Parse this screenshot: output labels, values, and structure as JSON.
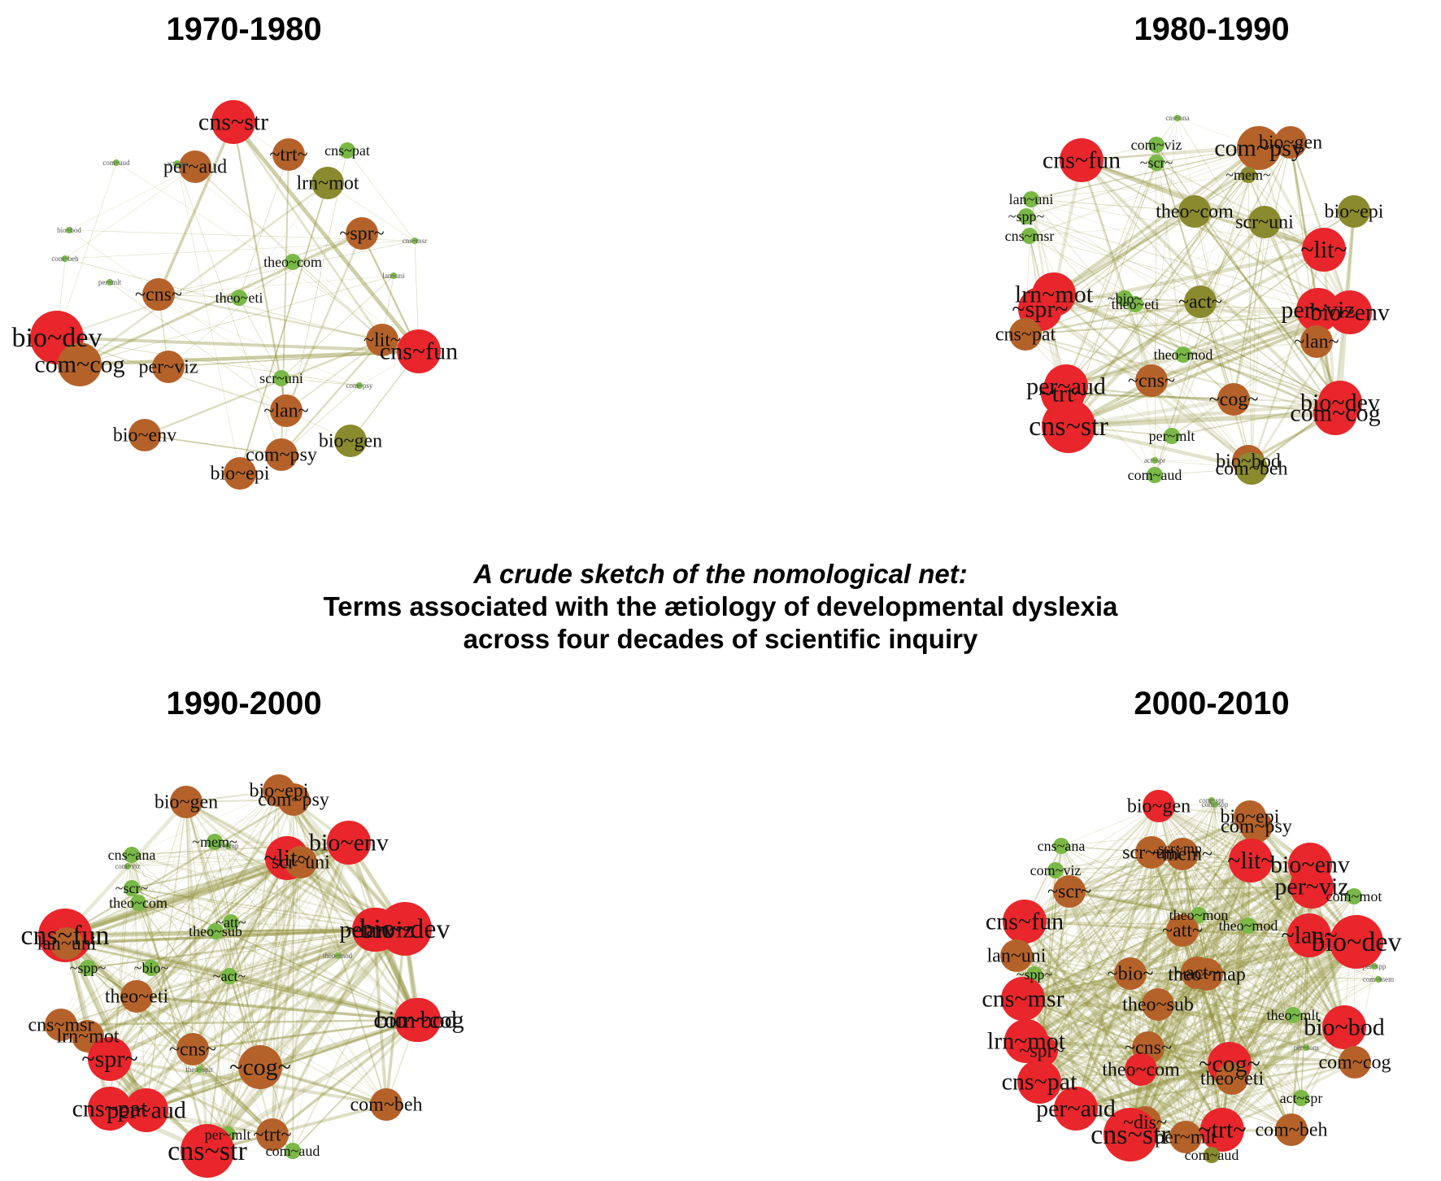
{
  "caption": {
    "line1": "A crude sketch of the nomological net:",
    "line2": "Terms associated with the ætiology of developmental dyslexia",
    "line3": "across four decades of scientific inquiry"
  },
  "colors": {
    "high": "#e8262b",
    "mid": "#b5622a",
    "low": "#8a8a2e",
    "small": "#7ab847",
    "edge": "#8a8a2e"
  },
  "panels": [
    {
      "title": "1970-1980",
      "nodes": [
        {
          "label": "cns~str",
          "size": 3,
          "color": "high"
        },
        {
          "label": "per~aud",
          "size": 2,
          "color": "mid"
        },
        {
          "label": "~trt~",
          "size": 2,
          "color": "mid"
        },
        {
          "label": "cns~pat",
          "size": 1,
          "color": "small"
        },
        {
          "label": "lrn~mot",
          "size": 2,
          "color": "low"
        },
        {
          "label": "~spr~",
          "size": 2,
          "color": "mid"
        },
        {
          "label": "theo~com",
          "size": 1,
          "color": "small"
        },
        {
          "label": "~cns~",
          "size": 2,
          "color": "mid"
        },
        {
          "label": "theo~eti",
          "size": 1,
          "color": "small"
        },
        {
          "label": "bio~dev",
          "size": 4,
          "color": "high"
        },
        {
          "label": "com~cog",
          "size": 3,
          "color": "mid"
        },
        {
          "label": "per~viz",
          "size": 2,
          "color": "mid"
        },
        {
          "label": "~lit~",
          "size": 2,
          "color": "mid"
        },
        {
          "label": "cns~fun",
          "size": 3,
          "color": "high"
        },
        {
          "label": "scr~uni",
          "size": 1,
          "color": "small"
        },
        {
          "label": "~lan~",
          "size": 2,
          "color": "mid"
        },
        {
          "label": "bio~env",
          "size": 2,
          "color": "mid"
        },
        {
          "label": "bio~gen",
          "size": 2,
          "color": "low"
        },
        {
          "label": "com~psy",
          "size": 2,
          "color": "mid"
        },
        {
          "label": "bio~epi",
          "size": 2,
          "color": "mid"
        },
        {
          "label": "com~aud",
          "size": 0,
          "color": "small"
        },
        {
          "label": "act~spr",
          "size": 0,
          "color": "small"
        },
        {
          "label": "bio~bod",
          "size": 0,
          "color": "small"
        },
        {
          "label": "per~mlt",
          "size": 0,
          "color": "small"
        },
        {
          "label": "com~beh",
          "size": 0,
          "color": "small"
        },
        {
          "label": "cns~msr",
          "size": 0,
          "color": "small"
        },
        {
          "label": "lan~uni",
          "size": 0,
          "color": "small"
        },
        {
          "label": "com~psy",
          "size": 0,
          "color": "small"
        }
      ]
    },
    {
      "title": "1980-1990",
      "nodes": [
        {
          "label": "cns~fun",
          "size": 3,
          "color": "high"
        },
        {
          "label": "cns~ana",
          "size": 0,
          "color": "small"
        },
        {
          "label": "com~viz",
          "size": 1,
          "color": "small"
        },
        {
          "label": "~scr~",
          "size": 1,
          "color": "small"
        },
        {
          "label": "bio~gen",
          "size": 2,
          "color": "mid"
        },
        {
          "label": "com~psy",
          "size": 3,
          "color": "mid"
        },
        {
          "label": "~mem~",
          "size": 1,
          "color": "low"
        },
        {
          "label": "lan~uni",
          "size": 1,
          "color": "small"
        },
        {
          "label": "~spp~",
          "size": 1,
          "color": "small"
        },
        {
          "label": "theo~com",
          "size": 2,
          "color": "low"
        },
        {
          "label": "bio~epi",
          "size": 2,
          "color": "low"
        },
        {
          "label": "scr~uni",
          "size": 2,
          "color": "low"
        },
        {
          "label": "cns~msr",
          "size": 1,
          "color": "small"
        },
        {
          "label": "~lit~",
          "size": 3,
          "color": "high"
        },
        {
          "label": "lrn~mot",
          "size": 3,
          "color": "high"
        },
        {
          "label": "~spr~",
          "size": 3,
          "color": "high"
        },
        {
          "label": "~bio~",
          "size": 1,
          "color": "small"
        },
        {
          "label": "theo~eti",
          "size": 1,
          "color": "small"
        },
        {
          "label": "~act~",
          "size": 2,
          "color": "low"
        },
        {
          "label": "per~viz",
          "size": 3,
          "color": "high"
        },
        {
          "label": "bio~env",
          "size": 3,
          "color": "high"
        },
        {
          "label": "cns~pat",
          "size": 2,
          "color": "mid"
        },
        {
          "label": "~lan~",
          "size": 2,
          "color": "mid"
        },
        {
          "label": "theo~mod",
          "size": 1,
          "color": "small"
        },
        {
          "label": "per~aud",
          "size": 3,
          "color": "high"
        },
        {
          "label": "~cns~",
          "size": 2,
          "color": "mid"
        },
        {
          "label": "~cog~",
          "size": 2,
          "color": "mid"
        },
        {
          "label": "bio~dev",
          "size": 3,
          "color": "high"
        },
        {
          "label": "com~cog",
          "size": 3,
          "color": "high"
        },
        {
          "label": "~trt~",
          "size": 3,
          "color": "high"
        },
        {
          "label": "cns~str",
          "size": 4,
          "color": "high"
        },
        {
          "label": "per~mlt",
          "size": 1,
          "color": "small"
        },
        {
          "label": "bio~bod",
          "size": 2,
          "color": "mid"
        },
        {
          "label": "act~spr",
          "size": 0,
          "color": "small"
        },
        {
          "label": "com~beh",
          "size": 2,
          "color": "low"
        },
        {
          "label": "com~aud",
          "size": 1,
          "color": "small"
        }
      ]
    },
    {
      "title": "1990-2000",
      "nodes": [
        {
          "label": "bio~gen",
          "size": 2,
          "color": "mid"
        },
        {
          "label": "bio~epi",
          "size": 2,
          "color": "mid"
        },
        {
          "label": "com~psy",
          "size": 2,
          "color": "mid"
        },
        {
          "label": "bio~env",
          "size": 3,
          "color": "high"
        },
        {
          "label": "~mem~",
          "size": 1,
          "color": "small"
        },
        {
          "label": "scr~mp",
          "size": 0,
          "color": "small"
        },
        {
          "label": "~lit~",
          "size": 3,
          "color": "high"
        },
        {
          "label": "scr~uni",
          "size": 2,
          "color": "mid"
        },
        {
          "label": "cns~ana",
          "size": 1,
          "color": "small"
        },
        {
          "label": "com~viz",
          "size": 0,
          "color": "small"
        },
        {
          "label": "~scr~",
          "size": 1,
          "color": "small"
        },
        {
          "label": "theo~com",
          "size": 1,
          "color": "small"
        },
        {
          "label": "~att~",
          "size": 1,
          "color": "small"
        },
        {
          "label": "theo~sub",
          "size": 1,
          "color": "small"
        },
        {
          "label": "~lan~",
          "size": 3,
          "color": "high"
        },
        {
          "label": "per~viz",
          "size": 3,
          "color": "high"
        },
        {
          "label": "bio~dev",
          "size": 4,
          "color": "high"
        },
        {
          "label": "cns~fun",
          "size": 4,
          "color": "high"
        },
        {
          "label": "lan~uni",
          "size": 2,
          "color": "mid"
        },
        {
          "label": "~spp~",
          "size": 1,
          "color": "small"
        },
        {
          "label": "~bio~",
          "size": 1,
          "color": "small"
        },
        {
          "label": "~act~",
          "size": 1,
          "color": "small"
        },
        {
          "label": "theo~mod",
          "size": 0,
          "color": "small"
        },
        {
          "label": "theo~eti",
          "size": 2,
          "color": "mid"
        },
        {
          "label": "com~cog",
          "size": 3,
          "color": "high"
        },
        {
          "label": "bio~bod",
          "size": 3,
          "color": "high"
        },
        {
          "label": "cns~msr",
          "size": 2,
          "color": "mid"
        },
        {
          "label": "lrn~mot",
          "size": 2,
          "color": "mid"
        },
        {
          "label": "~cns~",
          "size": 2,
          "color": "mid"
        },
        {
          "label": "~spr~",
          "size": 3,
          "color": "high"
        },
        {
          "label": "~cog~",
          "size": 3,
          "color": "mid"
        },
        {
          "label": "theo~spit",
          "size": 0,
          "color": "small"
        },
        {
          "label": "com~beh",
          "size": 2,
          "color": "mid"
        },
        {
          "label": "cns~pat",
          "size": 3,
          "color": "high"
        },
        {
          "label": "per~aud",
          "size": 3,
          "color": "high"
        },
        {
          "label": "per~mlt",
          "size": 1,
          "color": "small"
        },
        {
          "label": "~trt~",
          "size": 2,
          "color": "mid"
        },
        {
          "label": "com~aud",
          "size": 1,
          "color": "small"
        },
        {
          "label": "cns~str",
          "size": 4,
          "color": "high"
        }
      ]
    },
    {
      "title": "2000-2010",
      "nodes": [
        {
          "label": "bio~gen",
          "size": 2,
          "color": "high"
        },
        {
          "label": "com~spr",
          "size": 0,
          "color": "small"
        },
        {
          "label": "com~spp",
          "size": 0,
          "color": "small"
        },
        {
          "label": "bio~epi",
          "size": 2,
          "color": "mid"
        },
        {
          "label": "com~psy",
          "size": 2,
          "color": "mid"
        },
        {
          "label": "cns~ana",
          "size": 1,
          "color": "small"
        },
        {
          "label": "scr~mp",
          "size": 1,
          "color": "small"
        },
        {
          "label": "scr~uni",
          "size": 2,
          "color": "mid"
        },
        {
          "label": "~mem~",
          "size": 2,
          "color": "mid"
        },
        {
          "label": "~lit~",
          "size": 3,
          "color": "high"
        },
        {
          "label": "bio~env",
          "size": 3,
          "color": "high"
        },
        {
          "label": "per~viz",
          "size": 3,
          "color": "high"
        },
        {
          "label": "com~viz",
          "size": 1,
          "color": "small"
        },
        {
          "label": "~scr~",
          "size": 2,
          "color": "mid"
        },
        {
          "label": "com~mot",
          "size": 1,
          "color": "small"
        },
        {
          "label": "theo~mon",
          "size": 1,
          "color": "small"
        },
        {
          "label": "cns~fun",
          "size": 3,
          "color": "high"
        },
        {
          "label": "~att~",
          "size": 2,
          "color": "mid"
        },
        {
          "label": "theo~mod",
          "size": 1,
          "color": "small"
        },
        {
          "label": "~lan~",
          "size": 3,
          "color": "high"
        },
        {
          "label": "bio~dev",
          "size": 4,
          "color": "high"
        },
        {
          "label": "lan~uni",
          "size": 2,
          "color": "mid"
        },
        {
          "label": "~spp~",
          "size": 1,
          "color": "small"
        },
        {
          "label": "~bio~",
          "size": 2,
          "color": "mid"
        },
        {
          "label": "theo~map",
          "size": 2,
          "color": "mid"
        },
        {
          "label": "~act~",
          "size": 2,
          "color": "mid"
        },
        {
          "label": "per~spp",
          "size": 0,
          "color": "small"
        },
        {
          "label": "com~mem",
          "size": 0,
          "color": "small"
        },
        {
          "label": "cns~msr",
          "size": 3,
          "color": "high"
        },
        {
          "label": "theo~sub",
          "size": 2,
          "color": "mid"
        },
        {
          "label": "theo~mlt",
          "size": 1,
          "color": "small"
        },
        {
          "label": "bio~bod",
          "size": 3,
          "color": "high"
        },
        {
          "label": "lrn~mot",
          "size": 3,
          "color": "high"
        },
        {
          "label": "~spr~",
          "size": 2,
          "color": "high"
        },
        {
          "label": "~cns~",
          "size": 2,
          "color": "mid"
        },
        {
          "label": "per~som",
          "size": 0,
          "color": "small"
        },
        {
          "label": "~cog~",
          "size": 3,
          "color": "high"
        },
        {
          "label": "com~cog",
          "size": 2,
          "color": "mid"
        },
        {
          "label": "cns~pat",
          "size": 3,
          "color": "high"
        },
        {
          "label": "theo~com",
          "size": 2,
          "color": "high"
        },
        {
          "label": "theo~eti",
          "size": 2,
          "color": "mid"
        },
        {
          "label": "act~spr",
          "size": 1,
          "color": "small"
        },
        {
          "label": "per~aud",
          "size": 3,
          "color": "high"
        },
        {
          "label": "~dis~",
          "size": 2,
          "color": "mid"
        },
        {
          "label": "cns~str",
          "size": 4,
          "color": "high"
        },
        {
          "label": "per~mlt",
          "size": 2,
          "color": "mid"
        },
        {
          "label": "~trt~",
          "size": 3,
          "color": "high"
        },
        {
          "label": "com~beh",
          "size": 2,
          "color": "mid"
        },
        {
          "label": "com~aud",
          "size": 1,
          "color": "low"
        }
      ]
    }
  ]
}
